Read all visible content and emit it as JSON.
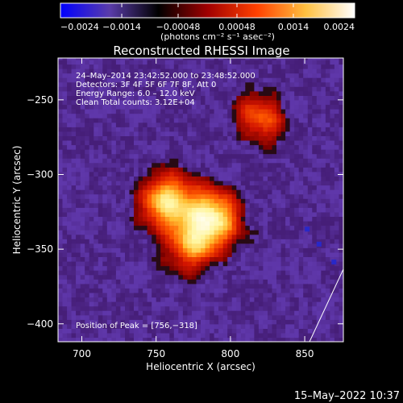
{
  "chart_data": {
    "type": "heatmap",
    "title": "Reconstructed RHESSI Image",
    "xlabel": "Heliocentric X (arcsec)",
    "ylabel": "Heliocentric Y (arcsec)",
    "xlim": [
      684,
      876
    ],
    "ylim": [
      -412,
      -222
    ],
    "x_ticks": [
      700,
      750,
      800,
      850
    ],
    "y_ticks": [
      -250,
      -300,
      -350,
      -400
    ],
    "x_tick_labels": [
      "700",
      "750",
      "800",
      "850"
    ],
    "y_tick_labels": [
      "−250",
      "−300",
      "−350",
      "−400"
    ],
    "colorbar": {
      "min": -0.0024,
      "max": 0.0024,
      "ticks": [
        -0.0024,
        -0.0014,
        -0.00048,
        0.00048,
        0.0014,
        0.0024
      ],
      "tick_labels": [
        "−0.0024",
        "−0.0014",
        "−0.00048",
        "0.00048",
        "0.0014",
        "0.0024"
      ],
      "units_label": "(photons cm⁻² s⁻¹ asec⁻²)",
      "colors": [
        "#0000ff",
        "#5a3caa",
        "#000000",
        "#a00000",
        "#ff4000",
        "#ffc040",
        "#ffffff"
      ]
    },
    "annotations": [
      "24–May–2014 23:42:52.000 to 23:48:52.000",
      "Detectors: 3F 4F 5F 6F 7F 8F, Att 0",
      "Energy Range: 6.0 – 12.0 keV",
      "Clean     Total counts: 3.12E+04"
    ],
    "peak": {
      "x": 756,
      "y": -318,
      "label": "Position of Peak = [756,−318]"
    },
    "sources": [
      {
        "x": 756,
        "y": -318,
        "relative_intensity": 1.0
      },
      {
        "x": 788,
        "y": -328,
        "relative_intensity": 0.9
      },
      {
        "x": 775,
        "y": -347,
        "relative_intensity": 0.8
      },
      {
        "x": 820,
        "y": -262,
        "relative_intensity": 0.55
      }
    ]
  },
  "footer": {
    "timestamp": "15–May–2022 10:37"
  }
}
